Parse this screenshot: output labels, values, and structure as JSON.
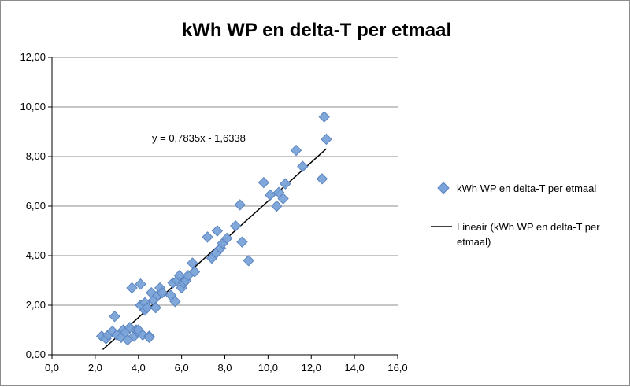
{
  "chart_data": {
    "type": "scatter",
    "title": "kWh WP en delta-T per etmaal",
    "xlabel": "",
    "ylabel": "",
    "xlim": [
      0,
      16
    ],
    "ylim": [
      0,
      12
    ],
    "x_ticks": [
      "0,0",
      "2,0",
      "4,0",
      "6,0",
      "8,0",
      "10,0",
      "12,0",
      "14,0",
      "16,0"
    ],
    "y_ticks": [
      "0,00",
      "2,00",
      "4,00",
      "6,00",
      "8,00",
      "10,00",
      "12,00"
    ],
    "grid": "horizontal",
    "legend_position": "right",
    "series": [
      {
        "name": "kWh WP en delta-T per etmaal",
        "color": "#7aa3d9",
        "marker": "diamond",
        "points": [
          [
            2.3,
            0.75
          ],
          [
            2.5,
            0.65
          ],
          [
            2.6,
            0.8
          ],
          [
            2.8,
            0.95
          ],
          [
            2.9,
            1.55
          ],
          [
            3.0,
            0.8
          ],
          [
            3.2,
            0.7
          ],
          [
            3.3,
            1.0
          ],
          [
            3.4,
            0.9
          ],
          [
            3.5,
            0.6
          ],
          [
            3.6,
            1.1
          ],
          [
            3.7,
            2.7
          ],
          [
            3.8,
            0.75
          ],
          [
            3.9,
            1.0
          ],
          [
            4.0,
            0.9
          ],
          [
            4.0,
            1.0
          ],
          [
            4.1,
            2.85
          ],
          [
            4.1,
            2.0
          ],
          [
            4.2,
            0.8
          ],
          [
            4.3,
            2.1
          ],
          [
            4.3,
            1.8
          ],
          [
            4.4,
            1.9
          ],
          [
            4.5,
            0.75
          ],
          [
            4.5,
            0.7
          ],
          [
            4.6,
            2.5
          ],
          [
            4.7,
            2.2
          ],
          [
            4.8,
            1.9
          ],
          [
            4.9,
            2.4
          ],
          [
            5.0,
            2.7
          ],
          [
            5.1,
            2.5
          ],
          [
            5.5,
            2.4
          ],
          [
            5.6,
            2.9
          ],
          [
            5.7,
            2.15
          ],
          [
            5.8,
            3.0
          ],
          [
            5.9,
            3.2
          ],
          [
            6.0,
            2.7
          ],
          [
            6.1,
            2.9
          ],
          [
            6.2,
            3.0
          ],
          [
            6.3,
            3.2
          ],
          [
            6.5,
            3.7
          ],
          [
            6.6,
            3.35
          ],
          [
            7.2,
            4.75
          ],
          [
            7.4,
            3.9
          ],
          [
            7.6,
            4.1
          ],
          [
            7.65,
            5.0
          ],
          [
            7.8,
            4.3
          ],
          [
            7.9,
            4.5
          ],
          [
            8.1,
            4.7
          ],
          [
            8.5,
            5.2
          ],
          [
            8.7,
            6.05
          ],
          [
            8.8,
            4.55
          ],
          [
            9.1,
            3.8
          ],
          [
            9.8,
            6.95
          ],
          [
            10.1,
            6.45
          ],
          [
            10.4,
            6.0
          ],
          [
            10.5,
            6.55
          ],
          [
            10.7,
            6.3
          ],
          [
            10.8,
            6.9
          ],
          [
            11.3,
            8.25
          ],
          [
            11.6,
            7.6
          ],
          [
            12.5,
            7.1
          ],
          [
            12.6,
            9.6
          ],
          [
            12.7,
            8.7
          ]
        ]
      }
    ],
    "trendline": {
      "name": "Lineair (kWh WP en delta-T per etmaal)",
      "slope": 0.7835,
      "intercept": -1.6338,
      "x_range": [
        2.35,
        12.7
      ],
      "equation": "y = 0,7835x - 1,6338",
      "color": "#000000"
    }
  },
  "legend": {
    "scatter_label": "kWh WP en delta-T per etmaal",
    "trend_label_line1": "Lineair (kWh WP en delta-T per",
    "trend_label_line2": "etmaal)"
  }
}
